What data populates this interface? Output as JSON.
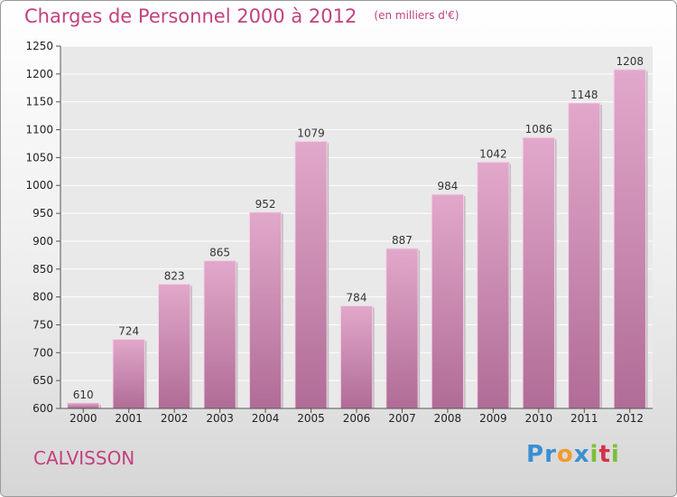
{
  "title": "Charges de Personnel 2000 à 2012",
  "unit_note": "(en milliers d'€)",
  "city": "CALVISSON",
  "logo": {
    "text": "Proxiti",
    "letters": [
      {
        "char": "P",
        "color": "#3a8fd0"
      },
      {
        "char": "r",
        "color": "#3a8fd0"
      },
      {
        "char": "o",
        "color": "#f29a2e"
      },
      {
        "char": "x",
        "color": "#3a8fd0"
      },
      {
        "char": "i",
        "color": "#7cbf3a"
      },
      {
        "char": "t",
        "color": "#d6304a"
      },
      {
        "char": "i",
        "color": "#7cbf3a"
      }
    ]
  },
  "colors": {
    "accent": "#c2417f",
    "bar_top": "#e2a8cb",
    "bar_bottom": "#b06c96",
    "bar_edge": "#f3d3e6",
    "grid": "#ffffff"
  },
  "chart_data": {
    "type": "bar",
    "categories": [
      "2000",
      "2001",
      "2002",
      "2003",
      "2004",
      "2005",
      "2006",
      "2007",
      "2008",
      "2009",
      "2010",
      "2011",
      "2012"
    ],
    "values": [
      610,
      724,
      823,
      865,
      952,
      1079,
      784,
      887,
      984,
      1042,
      1086,
      1148,
      1208
    ],
    "ylim": [
      600,
      1250
    ],
    "yticks": [
      600,
      650,
      700,
      750,
      800,
      850,
      900,
      950,
      1000,
      1050,
      1100,
      1150,
      1200,
      1250
    ],
    "grid": true,
    "xlabel": "",
    "ylabel": ""
  }
}
